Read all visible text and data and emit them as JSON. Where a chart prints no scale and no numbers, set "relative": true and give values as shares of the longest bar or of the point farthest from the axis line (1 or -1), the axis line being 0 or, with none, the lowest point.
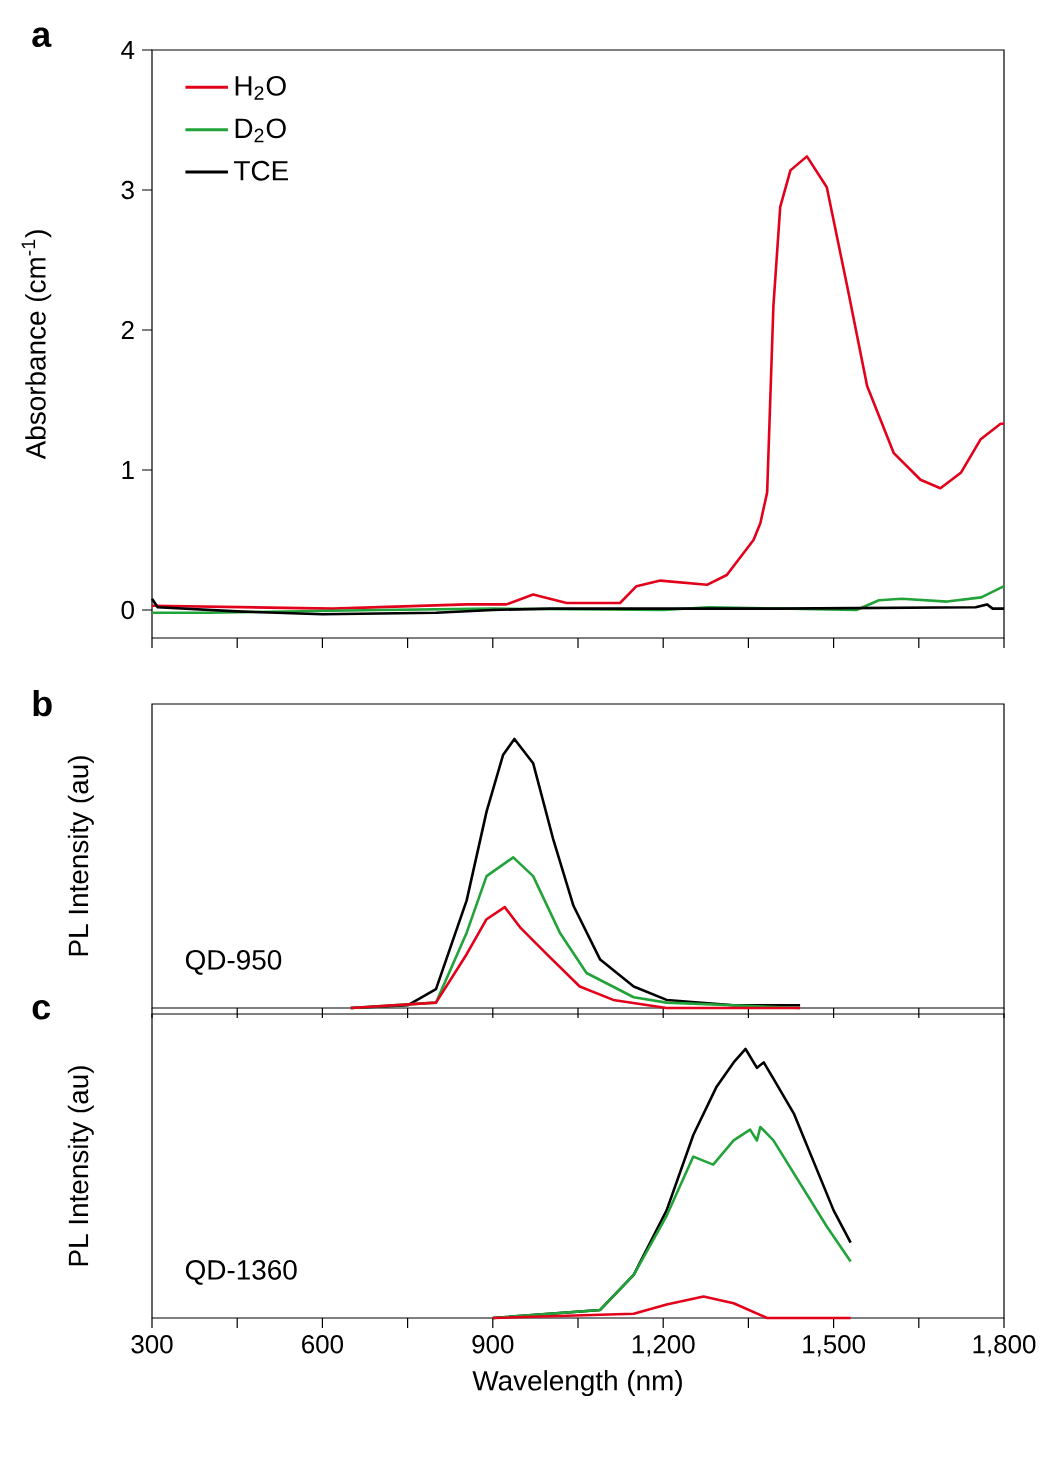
{
  "chart_data": [
    {
      "type": "line",
      "title": "a",
      "ylabel": "Absorbance (cm$^{-1}$)",
      "xlim": [
        300,
        1800
      ],
      "ylim": [
        -0.2,
        4
      ],
      "yticks": [
        0,
        1,
        2,
        3,
        4
      ],
      "xticks": [
        {
          "value": 300,
          "label": null
        },
        {
          "value": 450,
          "label": null
        },
        {
          "value": 600,
          "label": null
        },
        {
          "value": 750,
          "label": null
        },
        {
          "value": 900,
          "label": null
        },
        {
          "value": 1050,
          "label": null
        },
        {
          "value": 1200,
          "label": null
        },
        {
          "value": 1350,
          "label": null
        },
        {
          "value": 1500,
          "label": null
        },
        {
          "value": 1650,
          "label": null
        },
        {
          "value": 1800,
          "label": null
        }
      ],
      "tick_labels": "y",
      "legend": "top left",
      "series": [
        {
          "name": "H$_{2}$O",
          "color": "#e3001b",
          "x": [
            300,
            618,
            854,
            924,
            971,
            1030,
            1124,
            1153,
            1195,
            1277,
            1312,
            1359,
            1371,
            1383,
            1394,
            1406,
            1424,
            1453,
            1488,
            1524,
            1559,
            1606,
            1653,
            1688,
            1724,
            1759,
            1794,
            1800
          ],
          "values": [
            0.03,
            0.01,
            0.04,
            0.04,
            0.11,
            0.05,
            0.05,
            0.17,
            0.21,
            0.18,
            0.25,
            0.5,
            0.62,
            0.84,
            2.17,
            2.88,
            3.14,
            3.24,
            3.02,
            2.31,
            1.6,
            1.12,
            0.93,
            0.87,
            0.98,
            1.22,
            1.33,
            1.33
          ]
        },
        {
          "name": "D$_{2}$O",
          "color": "#22a33a",
          "x": [
            300,
            400,
            700,
            900,
            1200,
            1280,
            1540,
            1580,
            1620,
            1700,
            1760,
            1800
          ],
          "values": [
            -0.02,
            -0.02,
            0.0,
            0.01,
            0.0,
            0.02,
            0.0,
            0.07,
            0.08,
            0.06,
            0.09,
            0.17
          ]
        },
        {
          "name": "TCE",
          "color": "#000000",
          "x": [
            300,
            310,
            450,
            600,
            800,
            900,
            1000,
            1400,
            1750,
            1770,
            1780,
            1800
          ],
          "values": [
            0.08,
            0.02,
            -0.01,
            -0.03,
            -0.02,
            0.0,
            0.01,
            0.01,
            0.02,
            0.04,
            0.01,
            0.01
          ]
        }
      ]
    },
    {
      "type": "line",
      "title": "b",
      "ylabel": "PL Intensity (au)",
      "relative": true,
      "xlim": [
        300,
        1800
      ],
      "xticks": [
        {
          "value": 300,
          "label": null
        },
        {
          "value": 450,
          "label": null
        },
        {
          "value": 600,
          "label": null
        },
        {
          "value": 750,
          "label": null
        },
        {
          "value": 900,
          "label": null
        },
        {
          "value": 1050,
          "label": null
        },
        {
          "value": 1200,
          "label": null
        },
        {
          "value": 1350,
          "label": null
        },
        {
          "value": 1500,
          "label": null
        },
        {
          "value": 1650,
          "label": null
        },
        {
          "value": 1800,
          "label": null
        }
      ],
      "tick_labels": false,
      "annotations": [
        "QD-950"
      ],
      "series": [
        {
          "color": "#000000",
          "x": [
            650,
            750,
            800,
            854,
            889,
            918,
            938,
            971,
            1006,
            1042,
            1089,
            1148,
            1206,
            1324,
            1441
          ],
          "values": [
            0.0,
            0.01,
            0.07,
            0.4,
            0.73,
            0.94,
            1.0,
            0.91,
            0.63,
            0.38,
            0.18,
            0.08,
            0.03,
            0.01,
            0.01
          ]
        },
        {
          "color": "#22a33a",
          "x": [
            650,
            800,
            854,
            889,
            936,
            971,
            1018,
            1065,
            1148,
            1206,
            1441
          ],
          "values": [
            0.0,
            0.02,
            0.28,
            0.49,
            0.56,
            0.49,
            0.28,
            0.13,
            0.04,
            0.02,
            0.0
          ]
        },
        {
          "color": "#e3001b",
          "x": [
            650,
            800,
            854,
            889,
            921,
            948,
            995,
            1053,
            1112,
            1206,
            1441
          ],
          "values": [
            0.0,
            0.02,
            0.2,
            0.33,
            0.375,
            0.3,
            0.2,
            0.08,
            0.03,
            0.0,
            0.0
          ]
        }
      ]
    },
    {
      "type": "line",
      "title": "c",
      "xlabel": "Wavelength (nm)",
      "ylabel": "PL Intensity (au)",
      "relative": true,
      "xlim": [
        300,
        1800
      ],
      "xticks": [
        {
          "value": 300,
          "label": "300"
        },
        {
          "value": 450,
          "label": null
        },
        {
          "value": 600,
          "label": "600"
        },
        {
          "value": 750,
          "label": null
        },
        {
          "value": 900,
          "label": "900"
        },
        {
          "value": 1050,
          "label": null
        },
        {
          "value": 1200,
          "label": "1,200"
        },
        {
          "value": 1350,
          "label": null
        },
        {
          "value": 1500,
          "label": "1,500"
        },
        {
          "value": 1650,
          "label": null
        },
        {
          "value": 1800,
          "label": "1,800"
        }
      ],
      "tick_labels": "x",
      "annotations": [
        "QD-1360"
      ],
      "series": [
        {
          "color": "#000000",
          "x": [
            900,
            1089,
            1148,
            1206,
            1253,
            1294,
            1324,
            1345,
            1365,
            1377,
            1394,
            1430,
            1465,
            1500,
            1530
          ],
          "values": [
            0.0,
            0.03,
            0.16,
            0.4,
            0.68,
            0.86,
            0.95,
            1.0,
            0.93,
            0.95,
            0.89,
            0.76,
            0.58,
            0.4,
            0.28
          ]
        },
        {
          "color": "#22a33a",
          "x": [
            900,
            1089,
            1148,
            1206,
            1253,
            1288,
            1324,
            1353,
            1365,
            1371,
            1394,
            1441,
            1488,
            1530
          ],
          "values": [
            0.0,
            0.03,
            0.16,
            0.38,
            0.6,
            0.57,
            0.66,
            0.7,
            0.66,
            0.71,
            0.66,
            0.5,
            0.34,
            0.21
          ]
        },
        {
          "color": "#e3001b",
          "x": [
            900,
            1148,
            1206,
            1271,
            1324,
            1383,
            1530
          ],
          "values": [
            0.0,
            0.016,
            0.05,
            0.08,
            0.055,
            0.0,
            0.0
          ]
        }
      ]
    }
  ]
}
